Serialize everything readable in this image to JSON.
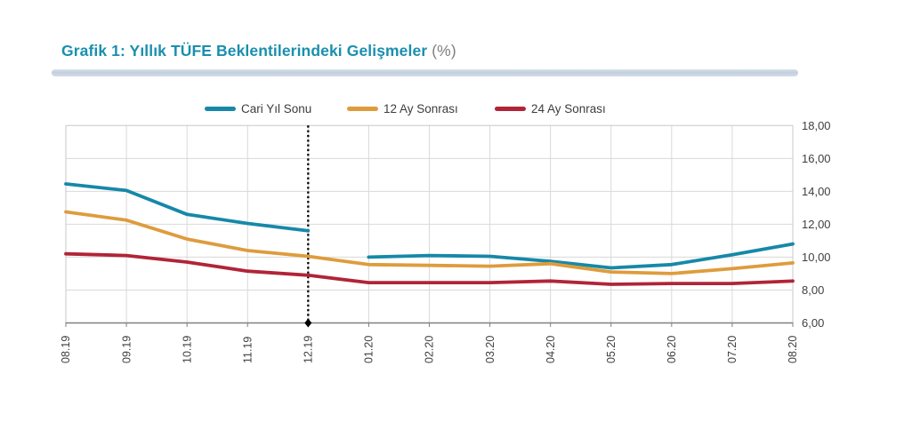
{
  "header": {
    "title": "Grafik 1: Yıllık TÜFE Beklentilerindeki Gelişmeler",
    "unit_suffix": "(%)"
  },
  "colors": {
    "title": "#1a8fae",
    "unit": "#7f7f7f",
    "divider": "#c9d5e2",
    "grid": "#d9d9d9",
    "plot_border": "#c8c8c8",
    "axis_line": "#808080",
    "axis_text": "#3f3f3f",
    "annotation": "#000000"
  },
  "chart_data": {
    "type": "line",
    "title": "Grafik 1: Yıllık TÜFE Beklentilerindeki Gelişmeler (%)",
    "categories": [
      "08.19",
      "09.19",
      "10.19",
      "11.19",
      "12.19",
      "01.20",
      "02.20",
      "03.20",
      "04.20",
      "05.20",
      "06.20",
      "07.20",
      "08.20"
    ],
    "series": [
      {
        "name": "Cari Yıl Sonu",
        "color": "#1688a8",
        "gap_after_index": 4,
        "values": [
          14.45,
          14.05,
          12.6,
          12.05,
          11.6,
          10.0,
          10.1,
          10.05,
          9.75,
          9.35,
          9.55,
          10.15,
          10.8
        ]
      },
      {
        "name": "12 Ay Sonrası",
        "color": "#de9c3d",
        "values": [
          12.75,
          12.25,
          11.1,
          10.4,
          10.05,
          9.55,
          9.5,
          9.45,
          9.6,
          9.1,
          9.0,
          9.3,
          9.65
        ]
      },
      {
        "name": "24 Ay Sonrası",
        "color": "#b12438",
        "values": [
          10.2,
          10.1,
          9.7,
          9.15,
          8.9,
          8.45,
          8.45,
          8.45,
          8.55,
          8.35,
          8.4,
          8.4,
          8.55
        ]
      }
    ],
    "ylim": [
      6,
      18
    ],
    "yticks": [
      {
        "value": 6,
        "label": "6,00"
      },
      {
        "value": 8,
        "label": "8,00"
      },
      {
        "value": 10,
        "label": "10,00"
      },
      {
        "value": 12,
        "label": "12,00"
      },
      {
        "value": 14,
        "label": "14,00"
      },
      {
        "value": 16,
        "label": "16,00"
      },
      {
        "value": 18,
        "label": "18,00"
      }
    ],
    "annotation": {
      "type": "vertical-dotted-line",
      "at_category": "12.19",
      "marker": "diamond"
    },
    "grid": true,
    "legend_position": "top",
    "x_labels_rotated": true
  }
}
